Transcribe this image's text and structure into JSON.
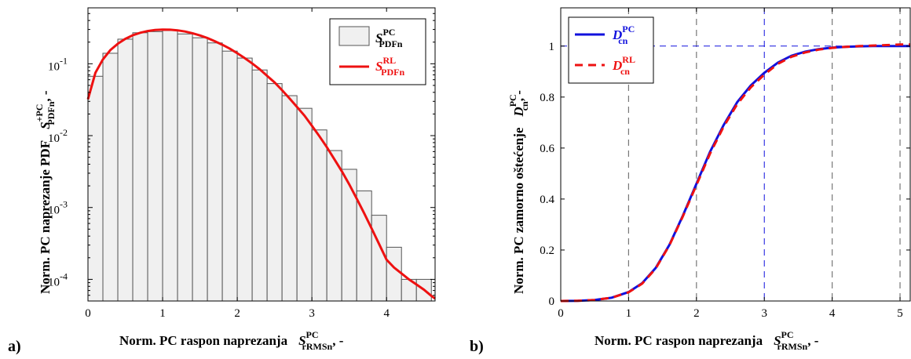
{
  "panel_labels": [
    "a)",
    "b)"
  ],
  "colors": {
    "bars_fill": "#f0f0f0",
    "bars_edge": "#555555",
    "red": "#ee1111",
    "blue": "#1111dd",
    "grid": "#777777"
  },
  "chart_data": [
    {
      "type": "bar",
      "scale_y": "log",
      "xlabel": {
        "main": "Norm. PC raspon naprezanja",
        "sym": "S",
        "sup": "PC",
        "sub": "rRMSn",
        "tail": ", -"
      },
      "ylabel": {
        "main": "Norm. PC naprezanje PDF",
        "sym": "S",
        "sup": "+PC",
        "sub": "PDFn",
        "tail": ", -"
      },
      "xlim": [
        0,
        4.65
      ],
      "ylim": [
        5e-05,
        0.6
      ],
      "xticks": [
        "0",
        "1",
        "2",
        "3",
        "4"
      ],
      "yticks": [
        {
          "base": "10",
          "exp": "-4",
          "value": 0.0001
        },
        {
          "base": "10",
          "exp": "-3",
          "value": 0.001
        },
        {
          "base": "10",
          "exp": "-2",
          "value": 0.01
        },
        {
          "base": "10",
          "exp": "-1",
          "value": 0.1
        }
      ],
      "bin_width": 0.2,
      "bin_starts": [
        0.0,
        0.2,
        0.4,
        0.6,
        0.8,
        1.0,
        1.2,
        1.4,
        1.6,
        1.8,
        2.0,
        2.2,
        2.4,
        2.6,
        2.8,
        3.0,
        3.2,
        3.4,
        3.6,
        3.8,
        4.0,
        4.2,
        4.4
      ],
      "bin_values": [
        0.067,
        0.14,
        0.22,
        0.27,
        0.28,
        0.29,
        0.26,
        0.23,
        0.195,
        0.15,
        0.12,
        0.082,
        0.053,
        0.036,
        0.024,
        0.012,
        0.0062,
        0.0034,
        0.0017,
        0.00078,
        0.00028,
        0.0001,
        0.0001
      ],
      "curve": {
        "x": [
          0.0,
          0.1,
          0.2,
          0.3,
          0.4,
          0.5,
          0.6,
          0.7,
          0.8,
          0.9,
          1.0,
          1.1,
          1.2,
          1.3,
          1.4,
          1.5,
          1.6,
          1.7,
          1.8,
          1.9,
          2.0,
          2.1,
          2.2,
          2.3,
          2.4,
          2.5,
          2.6,
          2.7,
          2.8,
          2.9,
          3.0,
          3.1,
          3.2,
          3.3,
          3.4,
          3.5,
          3.6,
          3.7,
          3.8,
          3.9,
          4.0,
          4.1,
          4.2,
          4.3,
          4.4,
          4.5,
          4.6,
          4.65
        ],
        "y": [
          0.032,
          0.075,
          0.115,
          0.155,
          0.19,
          0.222,
          0.249,
          0.27,
          0.285,
          0.295,
          0.299,
          0.298,
          0.292,
          0.281,
          0.266,
          0.248,
          0.228,
          0.206,
          0.184,
          0.162,
          0.14,
          0.12,
          0.101,
          0.084,
          0.068,
          0.055,
          0.043,
          0.033,
          0.025,
          0.019,
          0.0137,
          0.0098,
          0.0069,
          0.0047,
          0.0032,
          0.0021,
          0.00133,
          0.00083,
          0.00051,
          0.00031,
          0.000188,
          0.000146,
          0.000121,
          0.0001,
          8.5e-05,
          7.2e-05,
          5.9e-05,
          5.4e-05
        ]
      },
      "legend": {
        "position": "top-right",
        "items": [
          {
            "kind": "patch",
            "sym": "S",
            "sup": "PC",
            "sub": "PDFn",
            "color": "#000000"
          },
          {
            "kind": "line",
            "sym": "S",
            "sup": "RL",
            "sub": "PDFn",
            "color": "#ee1111"
          }
        ]
      }
    },
    {
      "type": "line",
      "xlabel": {
        "main": "Norm. PC raspon naprezanja",
        "sym": "S",
        "sup": "PC",
        "sub": "rRMSn",
        "tail": ", -"
      },
      "ylabel": {
        "main": "Norm. PC zamorno oštećenje",
        "sym": "D",
        "sup": "PC",
        "sub": "cn",
        "tail": ", -"
      },
      "xlim": [
        0,
        5.15
      ],
      "ylim": [
        0,
        1.15
      ],
      "xticks": [
        "0",
        "1",
        "2",
        "3",
        "4",
        "5"
      ],
      "yticks": [
        "0",
        "0.2",
        "0.4",
        "0.6",
        "0.8",
        "1"
      ],
      "vlines_gray": [
        1,
        2,
        4,
        5
      ],
      "vline_blue": 3,
      "hline_blue": 1,
      "series": [
        {
          "name_sym": "D",
          "sup": "PC",
          "sub": "cn",
          "color": "#1111dd",
          "dash": "none",
          "x": [
            0,
            0.25,
            0.5,
            0.75,
            1.0,
            1.2,
            1.4,
            1.6,
            1.8,
            2.0,
            2.2,
            2.4,
            2.6,
            2.8,
            3.0,
            3.2,
            3.4,
            3.6,
            3.8,
            4.0,
            4.2,
            4.4,
            4.6,
            4.8,
            5.0,
            5.15
          ],
          "y": [
            0,
            0.001,
            0.004,
            0.013,
            0.035,
            0.07,
            0.13,
            0.22,
            0.335,
            0.46,
            0.585,
            0.69,
            0.78,
            0.845,
            0.895,
            0.935,
            0.962,
            0.978,
            0.988,
            0.994,
            0.997,
            0.999,
            1.0,
            1.0,
            1.0,
            1.0
          ]
        },
        {
          "name_sym": "D",
          "sup": "RL",
          "sub": "cn",
          "color": "#ee1111",
          "dash": "10,7",
          "x": [
            0,
            0.25,
            0.5,
            0.75,
            1.0,
            1.2,
            1.4,
            1.6,
            1.8,
            2.0,
            2.2,
            2.4,
            2.6,
            2.8,
            3.0,
            3.2,
            3.4,
            3.6,
            3.8,
            4.0,
            4.2,
            4.4,
            4.6,
            4.8,
            5.0,
            5.15
          ],
          "y": [
            0,
            0.001,
            0.004,
            0.013,
            0.034,
            0.068,
            0.128,
            0.218,
            0.332,
            0.455,
            0.578,
            0.684,
            0.772,
            0.838,
            0.888,
            0.93,
            0.958,
            0.975,
            0.986,
            0.993,
            0.997,
            1.0,
            1.002,
            1.004,
            1.006,
            1.006
          ]
        }
      ],
      "legend": {
        "position": "top-left"
      }
    }
  ]
}
